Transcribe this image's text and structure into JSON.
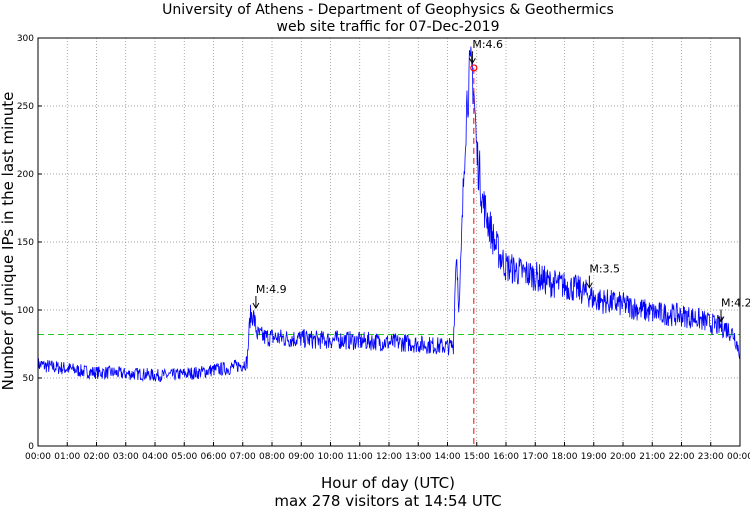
{
  "chart_data": {
    "type": "line",
    "title": "University of Athens - Department of Geophysics & Geothermics",
    "subtitle": "web site traffic for 07-Dec-2019",
    "xlabel": "Hour of day (UTC)",
    "footer": "max 278 visitors at 14:54 UTC",
    "ylabel": "Number of unique IPs in the last minute",
    "xlim": [
      0,
      24
    ],
    "ylim": [
      0,
      300
    ],
    "grid": true,
    "x_tick_labels": [
      "00:00",
      "01:00",
      "02:00",
      "03:00",
      "04:00",
      "05:00",
      "06:00",
      "07:00",
      "08:00",
      "09:00",
      "10:00",
      "11:00",
      "12:00",
      "13:00",
      "14:00",
      "15:00",
      "16:00",
      "17:00",
      "18:00",
      "19:00",
      "20:00",
      "21:00",
      "22:00",
      "23:00",
      "00:00"
    ],
    "y_ticks": [
      0,
      50,
      100,
      150,
      200,
      250,
      300
    ],
    "mean_line": 82,
    "max_marker": {
      "x": 14.9,
      "y": 278
    },
    "series": [
      {
        "color": "#0000ff",
        "x": [
          0,
          0.5,
          1,
          1.5,
          2,
          2.5,
          3,
          3.5,
          4,
          4.5,
          5,
          5.5,
          6,
          6.5,
          7,
          7.15,
          7.25,
          7.35,
          7.5,
          7.75,
          8,
          8.5,
          9,
          9.5,
          10,
          10.5,
          11,
          11.5,
          12,
          12.5,
          13,
          13.5,
          14,
          14.2,
          14.3,
          14.4,
          14.5,
          14.6,
          14.7,
          14.8,
          14.85,
          14.9,
          14.95,
          15,
          15.1,
          15.2,
          15.4,
          15.6,
          15.8,
          16,
          16.5,
          17,
          17.5,
          18,
          18.5,
          18.8,
          19,
          19.5,
          20,
          20.5,
          21,
          21.5,
          22,
          22.5,
          23,
          23.3,
          23.5,
          23.8,
          24
        ],
        "y": [
          60,
          58,
          57,
          55,
          54,
          54,
          53,
          53,
          52,
          52,
          53,
          54,
          56,
          57,
          60,
          62,
          95,
          97,
          82,
          80,
          80,
          79,
          79,
          78,
          78,
          78,
          77,
          77,
          76,
          76,
          75,
          74,
          73,
          74,
          145,
          100,
          160,
          230,
          265,
          272,
          278,
          262,
          240,
          215,
          200,
          180,
          165,
          150,
          140,
          132,
          128,
          125,
          120,
          118,
          115,
          112,
          108,
          106,
          104,
          101,
          98,
          97,
          96,
          94,
          90,
          88,
          87,
          82,
          68
        ]
      }
    ],
    "annotations": [
      {
        "label": "M:4.9",
        "x": 7.45,
        "y": 100
      },
      {
        "label": "M:4.6",
        "x": 14.85,
        "y": 280
      },
      {
        "label": "M:3.5",
        "x": 18.85,
        "y": 115
      },
      {
        "label": "M:4.2",
        "x": 23.35,
        "y": 90
      }
    ]
  }
}
